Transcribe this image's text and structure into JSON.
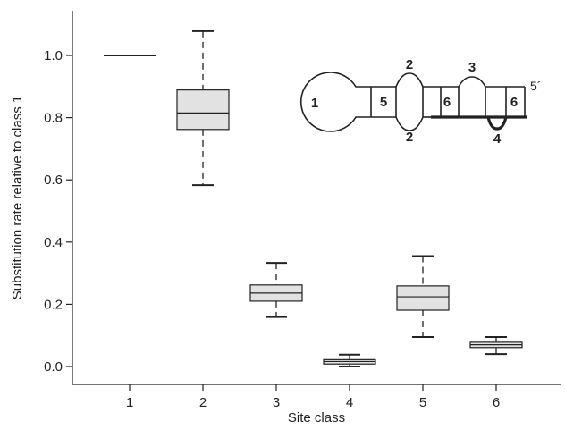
{
  "chart_data": {
    "type": "box",
    "xlabel": "Site class",
    "ylabel": "Substitution rate relative to class 1",
    "categories": [
      "1",
      "2",
      "3",
      "4",
      "5",
      "6"
    ],
    "ylim": [
      -0.06,
      1.16
    ],
    "yticks": [
      0.0,
      0.2,
      0.4,
      0.6,
      0.8,
      1.0
    ],
    "ytick_labels": [
      "0.0",
      "0.2",
      "0.4",
      "0.6",
      "0.8",
      "1.0"
    ],
    "grid": false,
    "boxes": [
      {
        "category": "1",
        "min": 1.0,
        "q1": 1.0,
        "median": 1.0,
        "q3": 1.0,
        "max": 1.0
      },
      {
        "category": "2",
        "min": 0.583,
        "q1": 0.762,
        "median": 0.815,
        "q3": 0.889,
        "max": 1.078
      },
      {
        "category": "3",
        "min": 0.159,
        "q1": 0.21,
        "median": 0.236,
        "q3": 0.262,
        "max": 0.333
      },
      {
        "category": "4",
        "min": 0.0,
        "q1": 0.008,
        "median": 0.016,
        "q3": 0.022,
        "max": 0.038
      },
      {
        "category": "5",
        "min": 0.095,
        "q1": 0.181,
        "median": 0.224,
        "q3": 0.259,
        "max": 0.355
      },
      {
        "category": "6",
        "min": 0.04,
        "q1": 0.061,
        "median": 0.07,
        "q3": 0.078,
        "max": 0.095
      }
    ],
    "box_fill": "#e2e2e2",
    "line_color": "#222222"
  },
  "inset": {
    "labels": {
      "loop": "1",
      "bulge_top_2": "2",
      "bulge_bottom_2": "2",
      "bulge_top_3": "3",
      "bulge_bottom_4": "4",
      "helix_5": "5",
      "helix_6_left": "6",
      "helix_6_right": "6",
      "five_prime": "5´"
    }
  }
}
